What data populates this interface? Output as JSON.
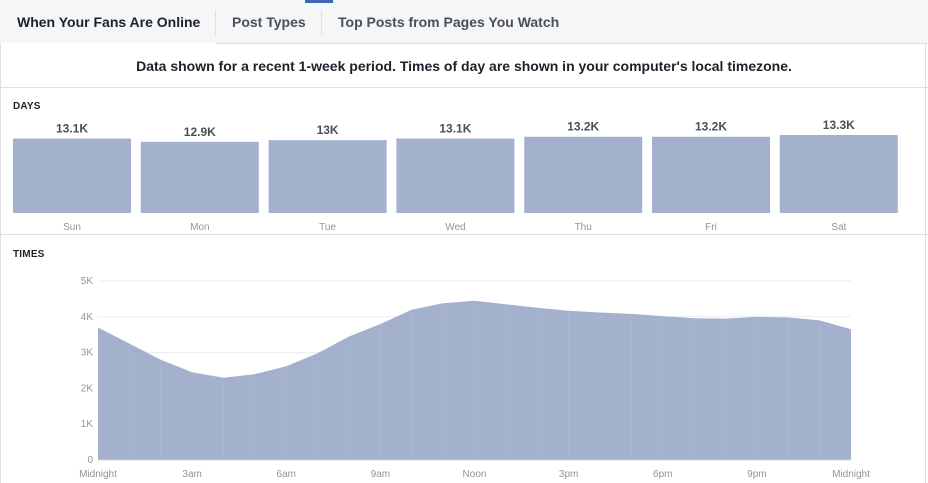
{
  "tabs": [
    {
      "label": "When Your Fans Are Online",
      "active": true
    },
    {
      "label": "Post Types",
      "active": false
    },
    {
      "label": "Top Posts from Pages You Watch",
      "active": false
    }
  ],
  "notice": "Data shown for a recent 1-week period. Times of day are shown in your computer's local timezone.",
  "colors": {
    "bar": "#a4b1cd",
    "area": "#a4b1cd",
    "grid": "#e9ebee",
    "label": "#90949c",
    "value": "#4b4f56"
  },
  "days_section": {
    "title": "DAYS"
  },
  "times_section": {
    "title": "TIMES"
  },
  "chart_data": [
    {
      "type": "bar",
      "title": "DAYS",
      "categories": [
        "Sun",
        "Mon",
        "Tue",
        "Wed",
        "Thu",
        "Fri",
        "Sat"
      ],
      "values": [
        13100,
        12900,
        13000,
        13100,
        13200,
        13200,
        13300
      ],
      "data_labels": [
        "13.1K",
        "12.9K",
        "13K",
        "13.1K",
        "13.2K",
        "13.2K",
        "13.3K"
      ]
    },
    {
      "type": "area",
      "title": "TIMES",
      "x_ticks": [
        "Midnight",
        "3am",
        "6am",
        "9am",
        "Noon",
        "3pm",
        "6pm",
        "9pm",
        "Midnight"
      ],
      "y_ticks": [
        "0",
        "1K",
        "2K",
        "3K",
        "4K",
        "5K"
      ],
      "ylim": [
        0,
        5000
      ],
      "grid": true,
      "x": [
        0,
        1,
        2,
        3,
        4,
        5,
        6,
        7,
        8,
        9,
        10,
        11,
        12,
        13,
        14,
        15,
        16,
        17,
        18,
        19,
        20,
        21,
        22,
        23,
        24
      ],
      "values": [
        3700,
        3250,
        2800,
        2450,
        2300,
        2400,
        2620,
        2980,
        3450,
        3800,
        4200,
        4380,
        4450,
        4350,
        4250,
        4170,
        4120,
        4080,
        4020,
        3960,
        3950,
        4000,
        3980,
        3900,
        3650
      ]
    }
  ]
}
